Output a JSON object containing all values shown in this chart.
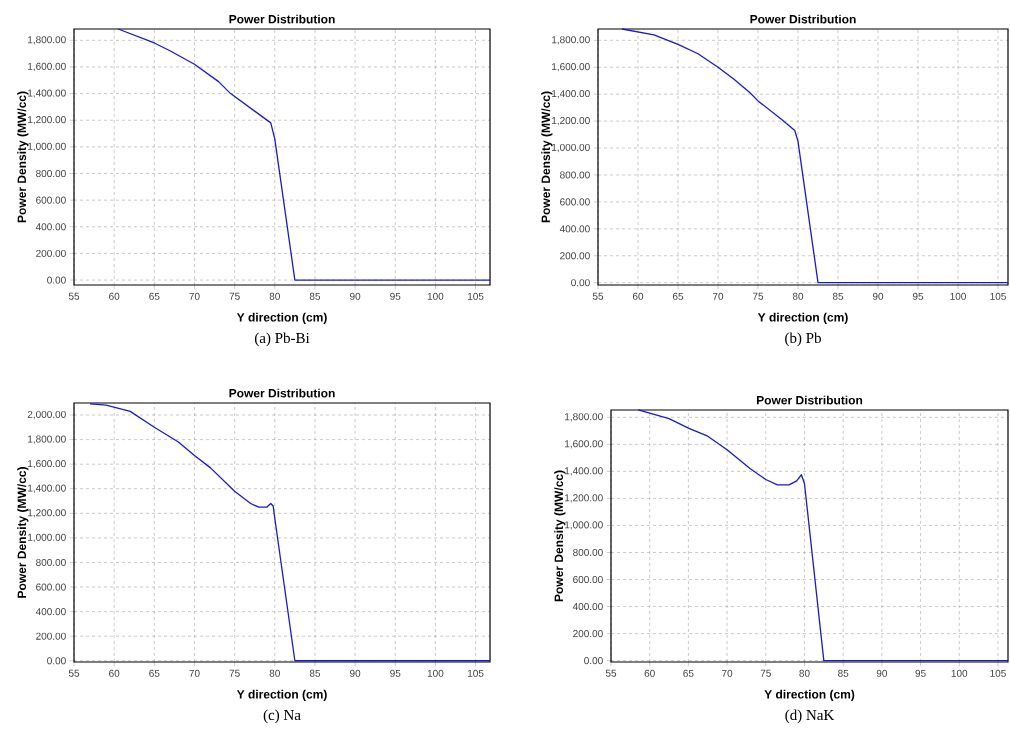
{
  "chart_data": [
    {
      "type": "line",
      "title": "Power Distribution",
      "xlabel": "Y direction (cm)",
      "ylabel": "Power Density (MW/cc)",
      "annotations": [
        "(a) Pb-Bi"
      ],
      "color": "#1a1acc",
      "grid": true,
      "x": [
        60.5,
        65,
        67,
        70,
        73,
        74.5,
        77,
        79.5,
        80,
        82.5,
        106.8
      ],
      "values": [
        1885,
        1780,
        1720,
        1620,
        1490,
        1400,
        1290,
        1180,
        1060,
        0,
        0
      ],
      "xlim": [
        55,
        106.8
      ],
      "ylim": [
        -37,
        1885
      ],
      "xticks": [
        55,
        60,
        65,
        70,
        75,
        80,
        85,
        90,
        95,
        100,
        105
      ],
      "yticks": [
        {
          "value": 0,
          "label": "0.00"
        },
        {
          "value": 200,
          "label": "200.00"
        },
        {
          "value": 400,
          "label": "400.00"
        },
        {
          "value": 600,
          "label": "600.00"
        },
        {
          "value": 800,
          "label": "800.00"
        },
        {
          "value": 1000,
          "label": "1,000.00"
        },
        {
          "value": 1200,
          "label": "1,200.00"
        },
        {
          "value": 1400,
          "label": "1,400.00"
        },
        {
          "value": 1600,
          "label": "1,600.00"
        },
        {
          "value": 1800,
          "label": "1,800.00"
        }
      ]
    },
    {
      "type": "line",
      "title": "Power Distribution",
      "xlabel": "Y direction (cm)",
      "ylabel": "Power Density (MW/cc)",
      "annotations": [
        "(b) Pb"
      ],
      "color": "#1a1acc",
      "grid": true,
      "x": [
        58,
        62,
        65,
        67.5,
        70,
        72,
        74,
        75,
        78,
        79.6,
        80,
        82.5,
        106.25
      ],
      "values": [
        1884,
        1840,
        1770,
        1700,
        1600,
        1510,
        1410,
        1350,
        1210,
        1130,
        1050,
        0,
        0
      ],
      "xlim": [
        55,
        106.25
      ],
      "ylim": [
        -17,
        1884
      ],
      "xticks": [
        55,
        60,
        65,
        70,
        75,
        80,
        85,
        90,
        95,
        100,
        105
      ],
      "yticks": [
        {
          "value": 0,
          "label": "0.00"
        },
        {
          "value": 200,
          "label": "200.00"
        },
        {
          "value": 400,
          "label": "400.00"
        },
        {
          "value": 600,
          "label": "600.00"
        },
        {
          "value": 800,
          "label": "800.00"
        },
        {
          "value": 1000,
          "label": "1,000.00"
        },
        {
          "value": 1200,
          "label": "1,200.00"
        },
        {
          "value": 1400,
          "label": "1,400.00"
        },
        {
          "value": 1600,
          "label": "1,600.00"
        },
        {
          "value": 1800,
          "label": "1,800.00"
        }
      ]
    },
    {
      "type": "line",
      "title": "Power Distribution",
      "xlabel": "Y direction (cm)",
      "ylabel": "Power Density (MW/cc)",
      "annotations": [
        "(c) Na"
      ],
      "color": "#1a1acc",
      "grid": true,
      "x": [
        57,
        59,
        62,
        65,
        68,
        70,
        72,
        75,
        77,
        78,
        79,
        79.5,
        79.8,
        80,
        82.5,
        106.8
      ],
      "values": [
        2090,
        2080,
        2030,
        1900,
        1780,
        1670,
        1570,
        1380,
        1280,
        1250,
        1250,
        1280,
        1260,
        1160,
        0,
        0
      ],
      "xlim": [
        55,
        106.8
      ],
      "ylim": [
        -10,
        2098
      ],
      "xticks": [
        55,
        60,
        65,
        70,
        75,
        80,
        85,
        90,
        95,
        100,
        105
      ],
      "yticks": [
        {
          "value": 0,
          "label": "0.00"
        },
        {
          "value": 200,
          "label": "200.00"
        },
        {
          "value": 400,
          "label": "400.00"
        },
        {
          "value": 600,
          "label": "600.00"
        },
        {
          "value": 800,
          "label": "800.00"
        },
        {
          "value": 1000,
          "label": "1,000.00"
        },
        {
          "value": 1200,
          "label": "1,200.00"
        },
        {
          "value": 1400,
          "label": "1,400.00"
        },
        {
          "value": 1600,
          "label": "1,600.00"
        },
        {
          "value": 1800,
          "label": "1,800.00"
        },
        {
          "value": 2000,
          "label": "2,000.00"
        }
      ]
    },
    {
      "type": "line",
      "title": "Power Distribution",
      "xlabel": "Y direction (cm)",
      "ylabel": "Power Density (MW/cc)",
      "annotations": [
        "(d) NaK"
      ],
      "color": "#1a1acc",
      "grid": true,
      "x": [
        58.5,
        60,
        62.5,
        65,
        67.5,
        70,
        73,
        75,
        76.5,
        78,
        79,
        79.6,
        80,
        82.5,
        106.3
      ],
      "values": [
        1854,
        1830,
        1790,
        1720,
        1660,
        1560,
        1420,
        1340,
        1300,
        1300,
        1330,
        1375,
        1310,
        0,
        0
      ],
      "xlim": [
        55,
        106.3
      ],
      "ylim": [
        -10,
        1854
      ],
      "xticks": [
        55,
        60,
        65,
        70,
        75,
        80,
        85,
        90,
        95,
        100,
        105
      ],
      "yticks": [
        {
          "value": 0,
          "label": "0.00"
        },
        {
          "value": 200,
          "label": "200.00"
        },
        {
          "value": 400,
          "label": "400.00"
        },
        {
          "value": 600,
          "label": "600.00"
        },
        {
          "value": 800,
          "label": "800.00"
        },
        {
          "value": 1000,
          "label": "1,000.00"
        },
        {
          "value": 1200,
          "label": "1,200.00"
        },
        {
          "value": 1400,
          "label": "1,400.00"
        },
        {
          "value": 1600,
          "label": "1,600.00"
        },
        {
          "value": 1800,
          "label": "1,800.00"
        }
      ]
    }
  ]
}
